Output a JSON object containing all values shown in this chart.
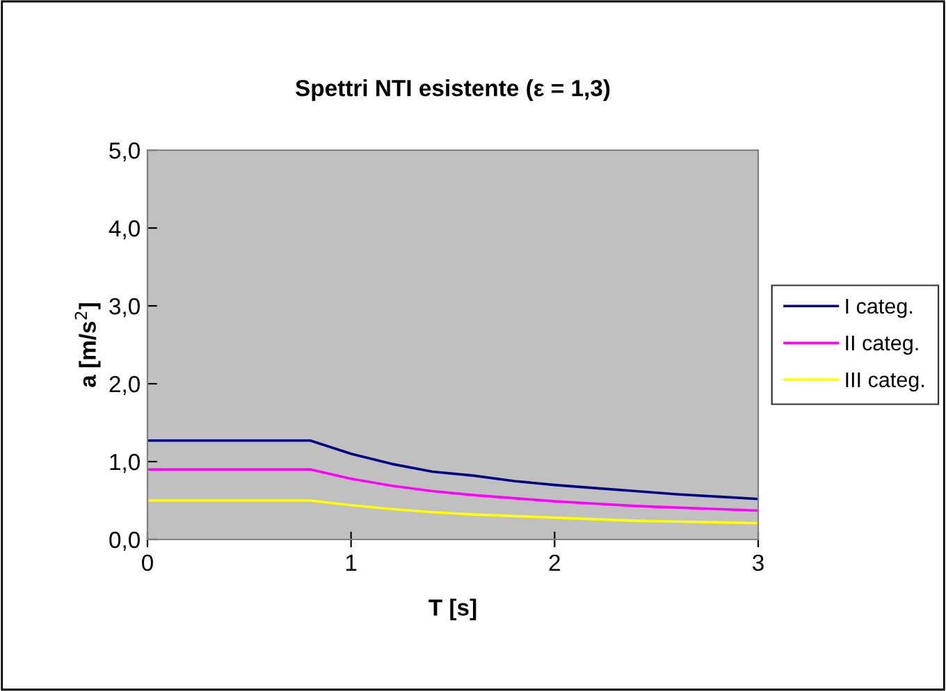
{
  "chart_data": {
    "type": "line",
    "title": "Spettri NTI esistente (ε = 1,3)",
    "xlabel": "T [s]",
    "ylabel": "a [m/s$^{2}$]",
    "x": [
      0,
      0.8,
      1.0,
      1.2,
      1.4,
      1.6,
      1.8,
      2.0,
      2.2,
      2.4,
      2.6,
      2.8,
      3.0
    ],
    "series": [
      {
        "name": "I categ.",
        "color": "#000080",
        "values": [
          1.27,
          1.27,
          1.1,
          0.97,
          0.87,
          0.82,
          0.75,
          0.7,
          0.66,
          0.62,
          0.58,
          0.55,
          0.52
        ]
      },
      {
        "name": "II categ.",
        "color": "#ff00ff",
        "values": [
          0.9,
          0.9,
          0.78,
          0.69,
          0.62,
          0.57,
          0.53,
          0.49,
          0.46,
          0.43,
          0.41,
          0.39,
          0.37
        ]
      },
      {
        "name": "III categ.",
        "color": "#ffff00",
        "values": [
          0.5,
          0.5,
          0.44,
          0.39,
          0.35,
          0.32,
          0.3,
          0.28,
          0.26,
          0.24,
          0.23,
          0.22,
          0.21
        ]
      }
    ],
    "xlim": [
      0,
      3
    ],
    "xticks": [
      0,
      1,
      2,
      3
    ],
    "ylim": [
      0,
      5
    ],
    "yticks": [
      {
        "value": 0,
        "label": "0,0"
      },
      {
        "value": 1,
        "label": "1,0"
      },
      {
        "value": 2,
        "label": "2,0"
      },
      {
        "value": 3,
        "label": "3,0"
      },
      {
        "value": 4,
        "label": "4,0"
      },
      {
        "value": 5,
        "label": "5,0"
      }
    ],
    "grid": false,
    "legend": "right",
    "marker": "none",
    "line_style": "solid"
  }
}
